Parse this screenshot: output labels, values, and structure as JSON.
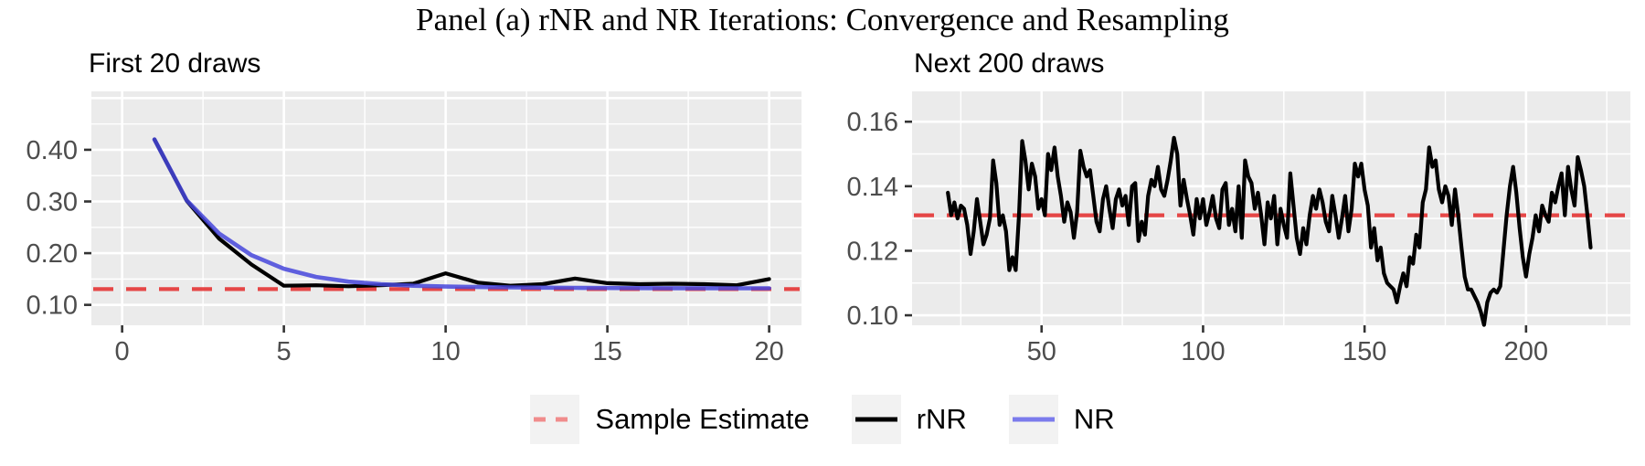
{
  "title": "Panel (a) rNR and NR Iterations: Convergence and Resampling",
  "legend": {
    "items": [
      {
        "label": "Sample Estimate",
        "key": "dashed-red"
      },
      {
        "label": "rNR",
        "key": "solid-black"
      },
      {
        "label": "NR",
        "key": "solid-blue"
      }
    ]
  },
  "colors": {
    "panel_bg": "#EBEBEB",
    "grid": "#FFFFFF",
    "axis_text": "#4D4D4D",
    "tick_mark": "#333333",
    "rnr": "#000000",
    "nr": "#4646DC",
    "sample_estimate": "#E53535",
    "legend_key_bg": "#F2F2F2",
    "legend_dash": "#F08C8C",
    "legend_nr": "#7B7BEC"
  },
  "chart_data": [
    {
      "type": "line",
      "panel_title": "First 20 draws",
      "xlabel": "",
      "ylabel": "",
      "xlim": [
        -0.95,
        21.0
      ],
      "ylim": [
        0.0605,
        0.513
      ],
      "xticks": [
        0,
        5,
        10,
        15,
        20
      ],
      "xtick_labels": [
        "0",
        "5",
        "10",
        "15",
        "20"
      ],
      "xticks_minor": [
        2.5,
        7.5,
        12.5,
        17.5
      ],
      "yticks": [
        0.1,
        0.2,
        0.3,
        0.4,
        0.5
      ],
      "ytick_labels": [
        "0.10",
        "0.20",
        "0.30",
        "0.40",
        ""
      ],
      "yticks_minor": [
        0.15,
        0.25,
        0.35,
        0.45
      ],
      "hline": {
        "name": "Sample Estimate",
        "value": 0.1305
      },
      "series": [
        {
          "name": "rNR",
          "x_start": 1,
          "values": [
            0.42,
            0.301,
            0.228,
            0.178,
            0.137,
            0.138,
            0.136,
            0.138,
            0.141,
            0.161,
            0.143,
            0.137,
            0.14,
            0.151,
            0.142,
            0.14,
            0.141,
            0.14,
            0.138,
            0.15
          ]
        },
        {
          "name": "NR",
          "x_start": 1,
          "values": [
            0.42,
            0.302,
            0.238,
            0.196,
            0.17,
            0.154,
            0.145,
            0.14,
            0.137,
            0.1355,
            0.1345,
            0.1338,
            0.1333,
            0.133,
            0.1327,
            0.1325,
            0.1323,
            0.1322,
            0.1321,
            0.132
          ]
        }
      ]
    },
    {
      "type": "line",
      "panel_title": "Next 200 draws",
      "xlabel": "",
      "ylabel": "",
      "xlim": [
        9.9,
        232.3
      ],
      "ylim": [
        0.0969,
        0.1694
      ],
      "xticks": [
        50,
        100,
        150,
        200
      ],
      "xtick_labels": [
        "50",
        "100",
        "150",
        "200"
      ],
      "xticks_minor": [
        25,
        75,
        125,
        175,
        225
      ],
      "yticks": [
        0.1,
        0.12,
        0.14,
        0.16
      ],
      "ytick_labels": [
        "0.10",
        "0.12",
        "0.14",
        "0.16"
      ],
      "yticks_minor": [
        0.11,
        0.13,
        0.15
      ],
      "hline": {
        "name": "Sample Estimate",
        "value": 0.131
      },
      "series": [
        {
          "name": "rNR",
          "x_start": 21,
          "values": [
            0.138,
            0.131,
            0.135,
            0.13,
            0.134,
            0.133,
            0.128,
            0.119,
            0.126,
            0.136,
            0.129,
            0.122,
            0.125,
            0.13,
            0.148,
            0.141,
            0.128,
            0.131,
            0.126,
            0.114,
            0.118,
            0.114,
            0.131,
            0.154,
            0.148,
            0.139,
            0.147,
            0.143,
            0.133,
            0.136,
            0.131,
            0.15,
            0.145,
            0.152,
            0.143,
            0.137,
            0.129,
            0.135,
            0.132,
            0.124,
            0.132,
            0.151,
            0.146,
            0.143,
            0.145,
            0.137,
            0.129,
            0.126,
            0.136,
            0.14,
            0.133,
            0.127,
            0.136,
            0.139,
            0.134,
            0.137,
            0.128,
            0.14,
            0.141,
            0.123,
            0.129,
            0.125,
            0.137,
            0.142,
            0.14,
            0.146,
            0.139,
            0.137,
            0.142,
            0.148,
            0.155,
            0.15,
            0.134,
            0.142,
            0.136,
            0.131,
            0.125,
            0.136,
            0.13,
            0.136,
            0.128,
            0.132,
            0.137,
            0.13,
            0.127,
            0.139,
            0.141,
            0.128,
            0.133,
            0.126,
            0.14,
            0.124,
            0.148,
            0.143,
            0.141,
            0.133,
            0.138,
            0.131,
            0.122,
            0.135,
            0.13,
            0.137,
            0.122,
            0.133,
            0.128,
            0.124,
            0.144,
            0.134,
            0.124,
            0.119,
            0.127,
            0.122,
            0.131,
            0.137,
            0.133,
            0.139,
            0.135,
            0.129,
            0.126,
            0.137,
            0.131,
            0.124,
            0.13,
            0.137,
            0.126,
            0.133,
            0.147,
            0.143,
            0.147,
            0.139,
            0.134,
            0.121,
            0.127,
            0.117,
            0.121,
            0.113,
            0.11,
            0.109,
            0.108,
            0.104,
            0.109,
            0.113,
            0.109,
            0.118,
            0.116,
            0.125,
            0.121,
            0.135,
            0.139,
            0.152,
            0.146,
            0.148,
            0.139,
            0.135,
            0.14,
            0.137,
            0.128,
            0.139,
            0.131,
            0.121,
            0.112,
            0.108,
            0.108,
            0.106,
            0.104,
            0.101,
            0.097,
            0.104,
            0.107,
            0.108,
            0.107,
            0.109,
            0.12,
            0.131,
            0.14,
            0.146,
            0.138,
            0.127,
            0.118,
            0.112,
            0.119,
            0.124,
            0.131,
            0.126,
            0.134,
            0.131,
            0.129,
            0.138,
            0.135,
            0.14,
            0.144,
            0.131,
            0.146,
            0.139,
            0.134,
            0.149,
            0.145,
            0.14,
            0.131,
            0.121
          ]
        }
      ]
    }
  ]
}
